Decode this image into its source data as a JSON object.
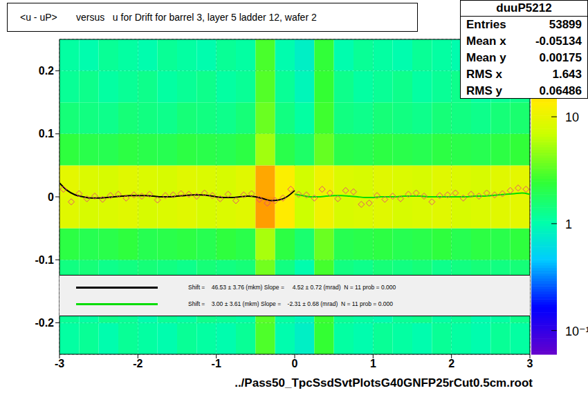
{
  "chart_data": {
    "type": "heatmap",
    "title": "<u - uP>       versus   u for Drift for barrel 3, layer 5 ladder 12, wafer 2",
    "x_label": "../Pass50_TpcSsdSvtPlotsG40GNFP25rCut0.5cm.root",
    "xlim": [
      -3,
      3
    ],
    "xticks": [
      -3,
      -2,
      -1,
      0,
      1,
      2,
      3
    ],
    "ylim": [
      -0.25,
      0.25
    ],
    "yticks": [
      -0.2,
      -0.1,
      0,
      0.1,
      0.2
    ],
    "grid": true,
    "stats": {
      "title": "duuP5212",
      "rows": [
        {
          "label": "Entries",
          "value": 53899
        },
        {
          "label": "Mean x",
          "value": -0.05134
        },
        {
          "label": "Mean y",
          "value": 0.00175
        },
        {
          "label": "RMS x",
          "value": 1.643
        },
        {
          "label": "RMS y",
          "value": 0.06486
        }
      ]
    },
    "heatmap": {
      "x_edges": [
        -3,
        -2.75,
        -2.5,
        -2.25,
        -2,
        -1.75,
        -1.5,
        -1.25,
        -1,
        -0.75,
        -0.5,
        -0.25,
        0,
        0.25,
        0.5,
        0.75,
        1,
        1.25,
        1.5,
        1.75,
        2,
        2.25,
        2.5,
        2.75,
        3
      ],
      "y_edges": [
        -0.25,
        -0.2,
        -0.15,
        -0.1,
        -0.05,
        0,
        0.05,
        0.1,
        0.15,
        0.2,
        0.25
      ],
      "cells": [
        [
          1.1,
          1.2,
          1.0,
          1.2,
          1.1,
          1.0,
          1.2,
          1.1,
          1.0,
          1.2,
          3.0,
          1.0,
          0.8,
          2.5,
          1.1,
          1.0,
          1.2,
          1.1,
          1.0,
          1.2,
          1.1,
          1.0,
          1.2,
          1.1
        ],
        [
          1.2,
          1.1,
          1.3,
          1.2,
          1.0,
          1.2,
          1.1,
          1.3,
          1.2,
          1.1,
          3.2,
          1.1,
          0.9,
          2.6,
          1.2,
          1.1,
          1.0,
          1.2,
          1.3,
          1.1,
          1.2,
          1.0,
          1.1,
          1.3
        ],
        [
          1.4,
          1.5,
          1.3,
          1.4,
          1.5,
          1.4,
          1.3,
          1.5,
          1.4,
          1.5,
          3.8,
          1.4,
          1.0,
          2.8,
          1.4,
          1.3,
          1.5,
          1.4,
          1.5,
          1.3,
          1.4,
          1.5,
          1.4,
          1.5
        ],
        [
          2.2,
          2.0,
          2.1,
          2.3,
          2.0,
          2.1,
          2.2,
          2.0,
          2.3,
          2.1,
          5.5,
          2.2,
          1.6,
          3.6,
          2.0,
          2.1,
          2.2,
          2.0,
          2.1,
          2.3,
          2.0,
          2.2,
          2.1,
          2.3
        ],
        [
          9,
          8,
          8.5,
          9,
          8,
          8.5,
          9,
          8,
          8.5,
          9,
          26,
          14,
          7,
          11,
          8,
          8.5,
          9,
          8,
          8.5,
          9,
          8,
          8.5,
          9,
          9.5
        ],
        [
          9.5,
          8.5,
          8,
          9,
          8.5,
          8,
          9,
          8.5,
          8,
          9,
          24,
          13,
          7.5,
          11,
          8.5,
          8,
          9,
          8.5,
          8,
          9,
          8.5,
          8,
          9,
          9.5
        ],
        [
          2.3,
          2.1,
          2.0,
          2.2,
          2.1,
          2.0,
          2.2,
          2.1,
          2.0,
          2.2,
          5.2,
          2.1,
          1.7,
          3.5,
          2.1,
          2.0,
          2.2,
          2.1,
          2.0,
          2.2,
          2.1,
          2.0,
          2.2,
          2.4
        ],
        [
          1.5,
          1.4,
          1.3,
          1.5,
          1.4,
          1.3,
          1.5,
          1.4,
          1.3,
          1.5,
          3.6,
          1.4,
          1.1,
          2.7,
          1.4,
          1.3,
          1.5,
          1.4,
          1.3,
          1.5,
          1.4,
          1.3,
          1.5,
          1.6
        ],
        [
          1.2,
          1.3,
          1.1,
          1.2,
          1.3,
          1.1,
          1.2,
          1.3,
          1.1,
          1.2,
          3.1,
          1.2,
          0.9,
          2.5,
          1.3,
          1.1,
          1.2,
          1.3,
          1.1,
          1.2,
          1.3,
          1.1,
          1.2,
          1.3
        ],
        [
          1.1,
          1.0,
          1.2,
          1.1,
          1.0,
          1.2,
          1.1,
          1.0,
          1.2,
          1.1,
          2.9,
          1.0,
          0.8,
          2.4,
          1.0,
          1.2,
          1.1,
          1.0,
          1.2,
          1.1,
          1.0,
          1.2,
          1.1,
          1.2
        ]
      ]
    },
    "colorbar": {
      "log": true,
      "range": [
        0.06,
        53
      ],
      "ticks": [
        10,
        1,
        {
          "value": 0.1,
          "label": "10⁻¹"
        }
      ]
    },
    "series": [
      {
        "type": "scatter",
        "marker": "diamond",
        "color": "#e8506e",
        "x": [
          -2.95,
          -2.85,
          -2.75,
          -2.65,
          -2.55,
          -2.45,
          -2.35,
          -2.25,
          -2.15,
          -2.05,
          -1.95,
          -1.85,
          -1.75,
          -1.65,
          -1.55,
          -1.45,
          -1.35,
          -1.25,
          -1.15,
          -1.05,
          -0.95,
          -0.85,
          -0.75,
          -0.65,
          -0.55,
          -0.45,
          -0.35,
          -0.25,
          -0.15,
          -0.05,
          0.05,
          0.15,
          0.25,
          0.35,
          0.45,
          0.55,
          0.65,
          0.75,
          0.85,
          0.95,
          1.05,
          1.15,
          1.25,
          1.35,
          1.45,
          1.55,
          1.65,
          1.75,
          1.85,
          1.95,
          2.05,
          2.15,
          2.25,
          2.35,
          2.45,
          2.55,
          2.65,
          2.75,
          2.85,
          2.95
        ],
        "values": [
          0.012,
          -0.008,
          0.005,
          -0.003,
          0.001,
          -0.004,
          0.002,
          0.004,
          -0.002,
          0.003,
          0.001,
          0.004,
          -0.005,
          0.002,
          0.003,
          0.005,
          0.004,
          0.001,
          0.006,
          0.002,
          -0.003,
          0.004,
          -0.006,
          0.003,
          0.005,
          -0.004,
          -0.01,
          -0.006,
          -0.002,
          0.012,
          0.004,
          0.003,
          -0.002,
          0.012,
          0.006,
          -0.003,
          0.01,
          0.008,
          -0.012,
          -0.01,
          0.002,
          -0.004,
          0.001,
          -0.003,
          0.004,
          0.006,
          0.001,
          -0.008,
          0.002,
          0.003,
          0.006,
          -0.002,
          0.004,
          0.001,
          0.006,
          0.003,
          0.005,
          0.01,
          0.014,
          0.012
        ]
      },
      {
        "type": "line",
        "line_style": "solid",
        "name": "Shift =    46.53 ± 3.76 (mkm) Slope =     4.52 ± 0.72 (mrad)  N = 11 prob = 0.000",
        "color": "#000000",
        "x": [
          -3,
          -2.9,
          -2.8,
          -2.7,
          -2.6,
          -2.5,
          -2.4,
          -2.3,
          -2.2,
          -2.1,
          -2,
          -1.9,
          -1.8,
          -1.7,
          -1.6,
          -1.5,
          -1.4,
          -1.3,
          -1.2,
          -1.1,
          -1,
          -0.9,
          -0.8,
          -0.7,
          -0.6,
          -0.5,
          -0.4,
          -0.3,
          -0.2,
          -0.1,
          0
        ],
        "values": [
          0.022,
          0.01,
          0.003,
          0.0,
          -0.002,
          -0.002,
          -0.001,
          0.0,
          0.001,
          0.002,
          0.002,
          0.002,
          0.001,
          0.0,
          0.0,
          0.001,
          0.002,
          0.003,
          0.003,
          0.002,
          0.0,
          -0.001,
          -0.001,
          0.0,
          0.001,
          0.0,
          -0.003,
          -0.006,
          -0.005,
          0.0,
          0.01
        ]
      },
      {
        "type": "line",
        "line_style": "solid",
        "name": "Shift =    3.00 ± 3.61 (mkm) Slope =    -2.31 ± 0.68 (mrad)  N = 11 prob = 0.000",
        "color": "#00dd00",
        "x": [
          0,
          0.1,
          0.2,
          0.3,
          0.4,
          0.5,
          0.6,
          0.7,
          0.8,
          0.9,
          1,
          1.1,
          1.2,
          1.3,
          1.4,
          1.5,
          1.6,
          1.7,
          1.8,
          1.9,
          2,
          2.1,
          2.2,
          2.3,
          2.4,
          2.5,
          2.6,
          2.7,
          2.8,
          2.9,
          3
        ],
        "values": [
          0.004,
          0.002,
          0.0,
          0.0,
          0.001,
          0.002,
          0.002,
          0.001,
          0.0,
          -0.001,
          -0.001,
          0.0,
          0.0,
          0.0,
          0.001,
          0.001,
          0.001,
          0.0,
          0.0,
          0.0,
          0.0,
          0.0,
          0.0,
          0.001,
          0.001,
          0.002,
          0.003,
          0.004,
          0.005,
          0.006,
          0.004
        ]
      }
    ]
  }
}
